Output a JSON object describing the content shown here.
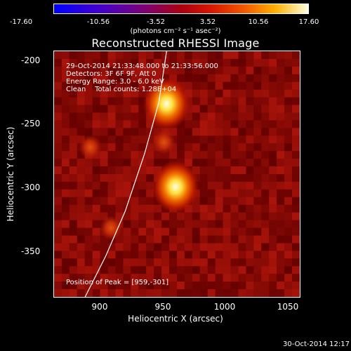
{
  "colorbar": {
    "ticks": [
      "-17.60",
      "-10.56",
      "-3.52",
      "3.52",
      "10.56",
      "17.60"
    ],
    "units": "(photons cm⁻² s⁻¹ asec⁻²)"
  },
  "title": "Reconstructed RHESSI Image",
  "annotations": {
    "time": "29-Oct-2014 21:33:48.000 to 21:33:56.000",
    "detectors": "Detectors: 3F 6F 9F, Att 0",
    "energy": "Energy Range: 3.0 - 6.0 keV",
    "clean": "Clean    Total counts: 1.28E+04",
    "peak": "Position of Peak = [959,-301]"
  },
  "axes": {
    "xlabel": "Heliocentric X (arcsec)",
    "ylabel": "Heliocentric Y (arcsec)",
    "xticks": [
      "900",
      "950",
      "1000",
      "1050"
    ],
    "yticks": [
      "-200",
      "-250",
      "-300",
      "-350"
    ],
    "xlim": [
      865,
      1055
    ],
    "ylim": [
      -387,
      -195
    ]
  },
  "image_sources": [
    {
      "x": 952,
      "y": -236,
      "intensity": 1.0
    },
    {
      "x": 959,
      "y": -301,
      "intensity": 1.0
    },
    {
      "x": 950,
      "y": -266,
      "intensity": 0.45
    },
    {
      "x": 893,
      "y": -270,
      "intensity": 0.4
    },
    {
      "x": 909,
      "y": -333,
      "intensity": 0.35
    }
  ],
  "limb_curve": {
    "x": [
      889,
      905,
      920,
      935,
      946,
      952
    ],
    "y": [
      -387,
      -355,
      -320,
      -275,
      -235,
      -195
    ]
  },
  "timestamp": "30-Oct-2014 12:17"
}
